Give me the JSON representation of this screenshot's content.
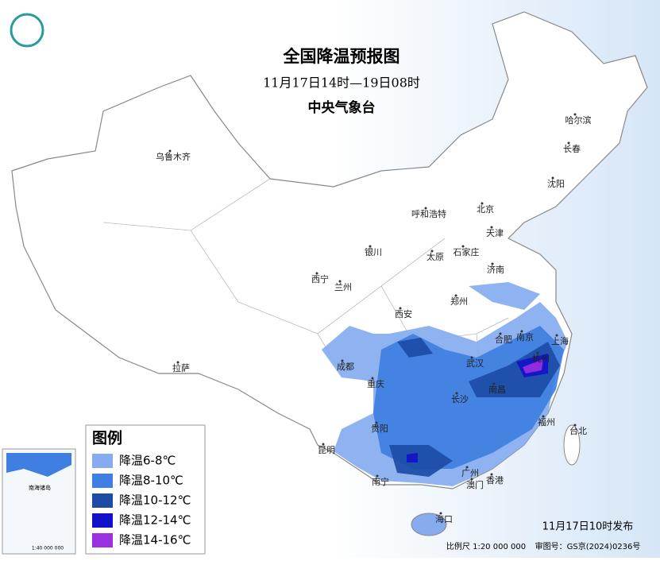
{
  "header": {
    "title": "全国降温预报图",
    "subtitle": "11月17日14时—19日08时",
    "issuer": "中央气象台"
  },
  "cities": [
    "乌鲁木齐",
    "哈尔滨",
    "长春",
    "沈阳",
    "北京",
    "天津",
    "呼和浩特",
    "石家庄",
    "太原",
    "银川",
    "西宁",
    "兰州",
    "济南",
    "郑州",
    "西安",
    "合肥",
    "南京",
    "上海",
    "杭州",
    "武汉",
    "成都",
    "重庆",
    "长沙",
    "南昌",
    "福州",
    "台北",
    "贵阳",
    "昆明",
    "南宁",
    "广州",
    "澳门",
    "香港",
    "海口",
    "拉萨"
  ],
  "legend": {
    "title": "图例",
    "items": [
      {
        "label": "降温6-8℃",
        "color": "#86acef"
      },
      {
        "label": "降温8-10℃",
        "color": "#3f7fe2"
      },
      {
        "label": "降温10-12℃",
        "color": "#1c4ca6"
      },
      {
        "label": "降温12-14℃",
        "color": "#1212c8"
      },
      {
        "label": "降温14-16℃",
        "color": "#9a30e0"
      }
    ]
  },
  "inset": {
    "label": "南海诸岛",
    "scale": "1:40 000 000"
  },
  "footer": {
    "issued": "11月17日10时发布",
    "scale": "比例尺 1:20 000 000",
    "approval": "审图号：GS京(2024)0236号"
  }
}
